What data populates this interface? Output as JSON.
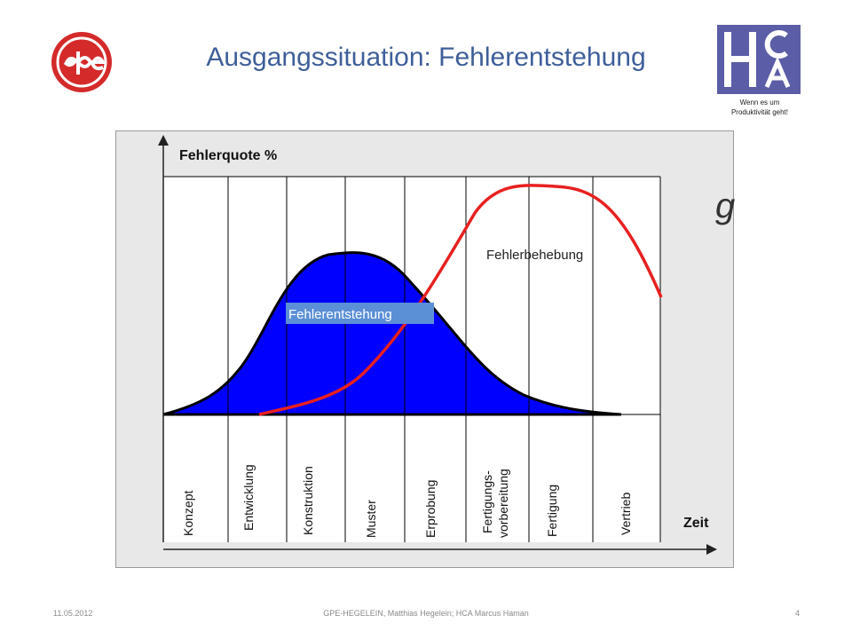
{
  "header": {
    "title": "Ausgangssituation: Fehlerentstehung",
    "tagline_line1": "Wenn es um",
    "tagline_line2": "Produktivität geht!",
    "left_logo_icon": "gpe-logo-icon",
    "right_logo_icon": "hca-logo-icon"
  },
  "diagram": {
    "y_axis_label": "Fehlerquote %",
    "x_axis_label": "Zeit",
    "phases": [
      "Konzept",
      "Entwicklung",
      "Konstruktion",
      "Muster",
      "Erprobung",
      "Fertigungs-",
      "vorbereitung",
      "Fertigung",
      "Vertrieb"
    ],
    "curve_labels": {
      "entstehung": "Fehlerentstehung",
      "behebung": "Fehlerbehebung"
    },
    "colors": {
      "entstehung_fill": "#0000ff",
      "behebung_line": "#e82020",
      "label_box": "#5b8fd6",
      "frame_bg": "#e8e8e8"
    }
  },
  "stray_text": "g",
  "footer": {
    "date": "11.05.2012",
    "credit": "GPE-HEGELEIN, Matthias Hegelein; HCA Marcus Haman",
    "page": "4"
  }
}
